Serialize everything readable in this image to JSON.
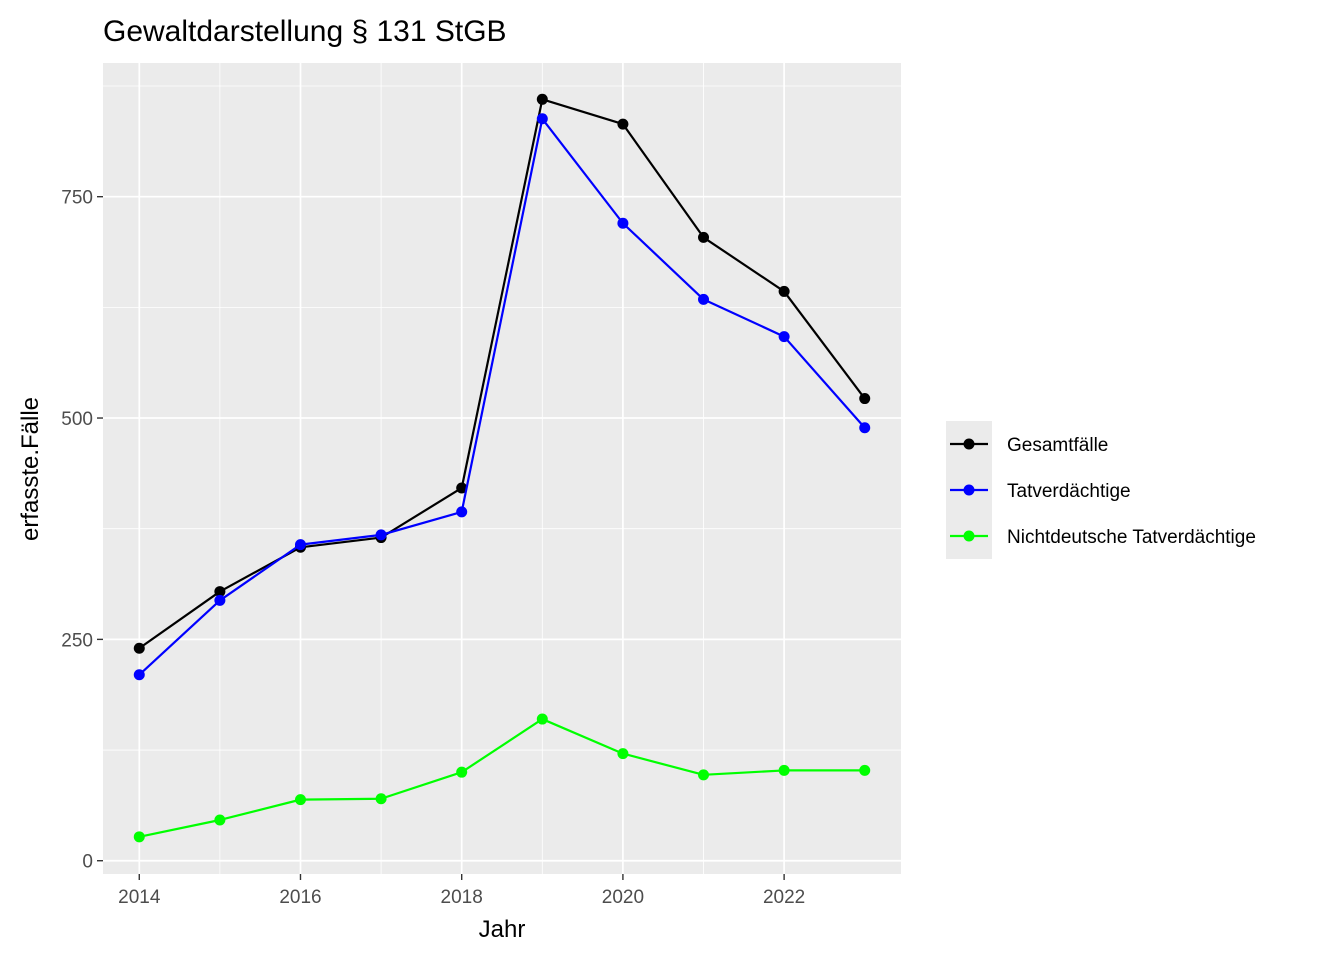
{
  "chart_data": {
    "type": "line",
    "title": "Gewaltdarstellung § 131 StGB",
    "xlabel": "Jahr",
    "ylabel": "erfasste.Fälle",
    "x": [
      2014,
      2015,
      2016,
      2017,
      2018,
      2019,
      2020,
      2021,
      2022,
      2023
    ],
    "xlim": [
      2013.55,
      2023.45
    ],
    "ylim": [
      -15,
      901
    ],
    "x_ticks": [
      2014,
      2016,
      2018,
      2020,
      2022
    ],
    "x_tick_labels": [
      "2014",
      "2016",
      "2018",
      "2020",
      "2022"
    ],
    "y_ticks": [
      0,
      250,
      500,
      750
    ],
    "y_tick_labels": [
      "0",
      "250",
      "500",
      "750"
    ],
    "grid": true,
    "legend_position": "right",
    "series": [
      {
        "name": "Gesamtfälle",
        "color": "#000000",
        "values": [
          240,
          304,
          354,
          365,
          421,
          860,
          832,
          704,
          643,
          522
        ]
      },
      {
        "name": "Tatverdächtige",
        "color": "#0000ff",
        "values": [
          210,
          294,
          357,
          368,
          394,
          838,
          720,
          634,
          592,
          489
        ]
      },
      {
        "name": "Nichtdeutsche Tatverdächtige",
        "color": "#00ff00",
        "values": [
          27,
          46,
          69,
          70,
          100,
          160,
          121,
          97,
          102,
          102
        ]
      }
    ]
  }
}
